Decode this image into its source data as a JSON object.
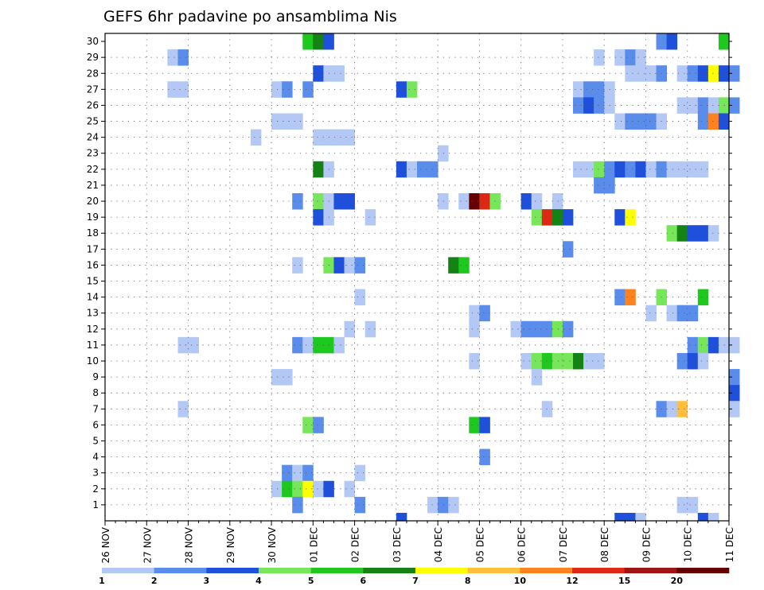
{
  "chart_data": {
    "type": "heatmap",
    "title": "GEFS 6hr padavine po ansamblima Nis",
    "x_tick_labels": [
      "26 NOV",
      "27 NOV",
      "28 NOV",
      "29 NOV",
      "30 NOV",
      "01 DEC",
      "02 DEC",
      "03 DEC",
      "04 DEC",
      "05 DEC",
      "06 DEC",
      "07 DEC",
      "08 DEC",
      "09 DEC",
      "10 DEC",
      "11 DEC"
    ],
    "y_tick_labels": [
      "1",
      "2",
      "3",
      "4",
      "5",
      "6",
      "7",
      "8",
      "9",
      "10",
      "11",
      "12",
      "13",
      "14",
      "15",
      "16",
      "17",
      "18",
      "19",
      "20",
      "21",
      "22",
      "23",
      "24",
      "25",
      "26",
      "27",
      "28",
      "29",
      "30"
    ],
    "ylim": [
      0,
      30
    ],
    "grid": true,
    "steps_per_day": 4,
    "legend": {
      "labels": [
        "1",
        "2",
        "3",
        "4",
        "5",
        "6",
        "7",
        "8",
        "10",
        "12",
        "15",
        "20"
      ],
      "colors": [
        "#b4c8f5",
        "#5a8ceb",
        "#1e50dc",
        "#78e65a",
        "#1ec81e",
        "#148214",
        "#ffff00",
        "#ffbe3c",
        "#ff821e",
        "#dc2814",
        "#a01414",
        "#640000"
      ]
    },
    "cells": [
      {
        "m": 30,
        "t": 19,
        "c": 5
      },
      {
        "m": 30,
        "t": 20,
        "c": 6
      },
      {
        "m": 30,
        "t": 21,
        "c": 3
      },
      {
        "m": 30,
        "t": 53,
        "c": 2
      },
      {
        "m": 30,
        "t": 54,
        "c": 3
      },
      {
        "m": 30,
        "t": 59,
        "c": 5
      },
      {
        "m": 29,
        "t": 6,
        "c": 1
      },
      {
        "m": 29,
        "t": 7,
        "c": 2
      },
      {
        "m": 29,
        "t": 47,
        "c": 1
      },
      {
        "m": 29,
        "t": 49,
        "c": 1
      },
      {
        "m": 29,
        "t": 50,
        "c": 2
      },
      {
        "m": 29,
        "t": 51,
        "c": 1
      },
      {
        "m": 28,
        "t": 20,
        "c": 3
      },
      {
        "m": 28,
        "t": 21,
        "c": 1
      },
      {
        "m": 28,
        "t": 22,
        "c": 1
      },
      {
        "m": 28,
        "t": 50,
        "c": 1
      },
      {
        "m": 28,
        "t": 51,
        "c": 1
      },
      {
        "m": 28,
        "t": 52,
        "c": 1
      },
      {
        "m": 28,
        "t": 53,
        "c": 2
      },
      {
        "m": 28,
        "t": 55,
        "c": 1
      },
      {
        "m": 28,
        "t": 56,
        "c": 2
      },
      {
        "m": 28,
        "t": 57,
        "c": 3
      },
      {
        "m": 28,
        "t": 58,
        "c": 7
      },
      {
        "m": 28,
        "t": 59,
        "c": 3
      },
      {
        "m": 28,
        "t": 60,
        "c": 2
      },
      {
        "m": 27,
        "t": 6,
        "c": 1
      },
      {
        "m": 27,
        "t": 7,
        "c": 1
      },
      {
        "m": 27,
        "t": 16,
        "c": 1
      },
      {
        "m": 27,
        "t": 17,
        "c": 2
      },
      {
        "m": 27,
        "t": 19,
        "c": 2
      },
      {
        "m": 27,
        "t": 28,
        "c": 3
      },
      {
        "m": 27,
        "t": 29,
        "c": 4
      },
      {
        "m": 27,
        "t": 45,
        "c": 1
      },
      {
        "m": 27,
        "t": 46,
        "c": 2
      },
      {
        "m": 27,
        "t": 47,
        "c": 2
      },
      {
        "m": 27,
        "t": 48,
        "c": 1
      },
      {
        "m": 26,
        "t": 45,
        "c": 2
      },
      {
        "m": 26,
        "t": 46,
        "c": 3
      },
      {
        "m": 26,
        "t": 47,
        "c": 2
      },
      {
        "m": 26,
        "t": 48,
        "c": 1
      },
      {
        "m": 26,
        "t": 55,
        "c": 1
      },
      {
        "m": 26,
        "t": 56,
        "c": 1
      },
      {
        "m": 26,
        "t": 57,
        "c": 2
      },
      {
        "m": 26,
        "t": 58,
        "c": 1
      },
      {
        "m": 26,
        "t": 59,
        "c": 4
      },
      {
        "m": 26,
        "t": 60,
        "c": 2
      },
      {
        "m": 25,
        "t": 16,
        "c": 1
      },
      {
        "m": 25,
        "t": 17,
        "c": 1
      },
      {
        "m": 25,
        "t": 18,
        "c": 1
      },
      {
        "m": 25,
        "t": 49,
        "c": 1
      },
      {
        "m": 25,
        "t": 50,
        "c": 2
      },
      {
        "m": 25,
        "t": 51,
        "c": 2
      },
      {
        "m": 25,
        "t": 52,
        "c": 2
      },
      {
        "m": 25,
        "t": 53,
        "c": 1
      },
      {
        "m": 25,
        "t": 57,
        "c": 2
      },
      {
        "m": 25,
        "t": 58,
        "c": 9
      },
      {
        "m": 25,
        "t": 59,
        "c": 3
      },
      {
        "m": 24,
        "t": 14,
        "c": 1
      },
      {
        "m": 24,
        "t": 20,
        "c": 1
      },
      {
        "m": 24,
        "t": 21,
        "c": 1
      },
      {
        "m": 24,
        "t": 22,
        "c": 1
      },
      {
        "m": 24,
        "t": 23,
        "c": 1
      },
      {
        "m": 23,
        "t": 32,
        "c": 1
      },
      {
        "m": 22,
        "t": 20,
        "c": 6
      },
      {
        "m": 22,
        "t": 21,
        "c": 1
      },
      {
        "m": 22,
        "t": 28,
        "c": 3
      },
      {
        "m": 22,
        "t": 29,
        "c": 1
      },
      {
        "m": 22,
        "t": 30,
        "c": 2
      },
      {
        "m": 22,
        "t": 31,
        "c": 2
      },
      {
        "m": 22,
        "t": 45,
        "c": 1
      },
      {
        "m": 22,
        "t": 46,
        "c": 1
      },
      {
        "m": 22,
        "t": 47,
        "c": 4
      },
      {
        "m": 22,
        "t": 48,
        "c": 2
      },
      {
        "m": 22,
        "t": 49,
        "c": 3
      },
      {
        "m": 22,
        "t": 50,
        "c": 2
      },
      {
        "m": 22,
        "t": 51,
        "c": 3
      },
      {
        "m": 22,
        "t": 52,
        "c": 1
      },
      {
        "m": 22,
        "t": 53,
        "c": 2
      },
      {
        "m": 22,
        "t": 54,
        "c": 1
      },
      {
        "m": 22,
        "t": 55,
        "c": 1
      },
      {
        "m": 22,
        "t": 56,
        "c": 1
      },
      {
        "m": 22,
        "t": 57,
        "c": 1
      },
      {
        "m": 21,
        "t": 47,
        "c": 2
      },
      {
        "m": 21,
        "t": 48,
        "c": 2
      },
      {
        "m": 20,
        "t": 18,
        "c": 2
      },
      {
        "m": 20,
        "t": 20,
        "c": 4
      },
      {
        "m": 20,
        "t": 21,
        "c": 1
      },
      {
        "m": 20,
        "t": 22,
        "c": 3
      },
      {
        "m": 20,
        "t": 23,
        "c": 3
      },
      {
        "m": 20,
        "t": 32,
        "c": 1
      },
      {
        "m": 20,
        "t": 34,
        "c": 1
      },
      {
        "m": 20,
        "t": 35,
        "c": 12
      },
      {
        "m": 20,
        "t": 36,
        "c": 10
      },
      {
        "m": 20,
        "t": 37,
        "c": 4
      },
      {
        "m": 20,
        "t": 40,
        "c": 3
      },
      {
        "m": 20,
        "t": 41,
        "c": 1
      },
      {
        "m": 20,
        "t": 43,
        "c": 1
      },
      {
        "m": 19,
        "t": 20,
        "c": 3
      },
      {
        "m": 19,
        "t": 21,
        "c": 1
      },
      {
        "m": 19,
        "t": 25,
        "c": 1
      },
      {
        "m": 19,
        "t": 41,
        "c": 4
      },
      {
        "m": 19,
        "t": 42,
        "c": 10
      },
      {
        "m": 19,
        "t": 43,
        "c": 6
      },
      {
        "m": 19,
        "t": 44,
        "c": 3
      },
      {
        "m": 19,
        "t": 49,
        "c": 3
      },
      {
        "m": 19,
        "t": 50,
        "c": 7
      },
      {
        "m": 18,
        "t": 54,
        "c": 4
      },
      {
        "m": 18,
        "t": 55,
        "c": 6
      },
      {
        "m": 18,
        "t": 56,
        "c": 3
      },
      {
        "m": 18,
        "t": 57,
        "c": 3
      },
      {
        "m": 18,
        "t": 58,
        "c": 1
      },
      {
        "m": 17,
        "t": 44,
        "c": 2
      },
      {
        "m": 16,
        "t": 18,
        "c": 1
      },
      {
        "m": 16,
        "t": 21,
        "c": 4
      },
      {
        "m": 16,
        "t": 22,
        "c": 3
      },
      {
        "m": 16,
        "t": 23,
        "c": 1
      },
      {
        "m": 16,
        "t": 24,
        "c": 2
      },
      {
        "m": 16,
        "t": 33,
        "c": 6
      },
      {
        "m": 16,
        "t": 34,
        "c": 5
      },
      {
        "m": 14,
        "t": 24,
        "c": 1
      },
      {
        "m": 14,
        "t": 49,
        "c": 2
      },
      {
        "m": 14,
        "t": 50,
        "c": 9
      },
      {
        "m": 14,
        "t": 53,
        "c": 4
      },
      {
        "m": 14,
        "t": 57,
        "c": 5
      },
      {
        "m": 13,
        "t": 35,
        "c": 1
      },
      {
        "m": 13,
        "t": 36,
        "c": 2
      },
      {
        "m": 13,
        "t": 52,
        "c": 1
      },
      {
        "m": 13,
        "t": 54,
        "c": 1
      },
      {
        "m": 13,
        "t": 55,
        "c": 2
      },
      {
        "m": 13,
        "t": 56,
        "c": 2
      },
      {
        "m": 12,
        "t": 23,
        "c": 1
      },
      {
        "m": 12,
        "t": 25,
        "c": 1
      },
      {
        "m": 12,
        "t": 35,
        "c": 1
      },
      {
        "m": 12,
        "t": 39,
        "c": 1
      },
      {
        "m": 12,
        "t": 40,
        "c": 2
      },
      {
        "m": 12,
        "t": 41,
        "c": 2
      },
      {
        "m": 12,
        "t": 42,
        "c": 2
      },
      {
        "m": 12,
        "t": 43,
        "c": 4
      },
      {
        "m": 12,
        "t": 44,
        "c": 2
      },
      {
        "m": 11,
        "t": 7,
        "c": 1
      },
      {
        "m": 11,
        "t": 8,
        "c": 1
      },
      {
        "m": 11,
        "t": 18,
        "c": 2
      },
      {
        "m": 11,
        "t": 19,
        "c": 1
      },
      {
        "m": 11,
        "t": 20,
        "c": 5
      },
      {
        "m": 11,
        "t": 21,
        "c": 5
      },
      {
        "m": 11,
        "t": 22,
        "c": 1
      },
      {
        "m": 11,
        "t": 56,
        "c": 2
      },
      {
        "m": 11,
        "t": 57,
        "c": 4
      },
      {
        "m": 11,
        "t": 58,
        "c": 3
      },
      {
        "m": 11,
        "t": 59,
        "c": 1
      },
      {
        "m": 11,
        "t": 60,
        "c": 1
      },
      {
        "m": 10,
        "t": 35,
        "c": 1
      },
      {
        "m": 10,
        "t": 40,
        "c": 1
      },
      {
        "m": 10,
        "t": 41,
        "c": 4
      },
      {
        "m": 10,
        "t": 42,
        "c": 5
      },
      {
        "m": 10,
        "t": 43,
        "c": 4
      },
      {
        "m": 10,
        "t": 44,
        "c": 4
      },
      {
        "m": 10,
        "t": 45,
        "c": 6
      },
      {
        "m": 10,
        "t": 46,
        "c": 1
      },
      {
        "m": 10,
        "t": 47,
        "c": 1
      },
      {
        "m": 10,
        "t": 55,
        "c": 2
      },
      {
        "m": 10,
        "t": 56,
        "c": 3
      },
      {
        "m": 10,
        "t": 57,
        "c": 1
      },
      {
        "m": 9,
        "t": 16,
        "c": 1
      },
      {
        "m": 9,
        "t": 17,
        "c": 1
      },
      {
        "m": 9,
        "t": 41,
        "c": 1
      },
      {
        "m": 9,
        "t": 60,
        "c": 2
      },
      {
        "m": 8,
        "t": 60,
        "c": 3
      },
      {
        "m": 7,
        "t": 7,
        "c": 1
      },
      {
        "m": 7,
        "t": 42,
        "c": 1
      },
      {
        "m": 7,
        "t": 53,
        "c": 2
      },
      {
        "m": 7,
        "t": 54,
        "c": 1
      },
      {
        "m": 7,
        "t": 55,
        "c": 8
      },
      {
        "m": 7,
        "t": 60,
        "c": 1
      },
      {
        "m": 6,
        "t": 19,
        "c": 4
      },
      {
        "m": 6,
        "t": 20,
        "c": 2
      },
      {
        "m": 6,
        "t": 35,
        "c": 5
      },
      {
        "m": 6,
        "t": 36,
        "c": 3
      },
      {
        "m": 4,
        "t": 36,
        "c": 2
      },
      {
        "m": 3,
        "t": 17,
        "c": 2
      },
      {
        "m": 3,
        "t": 18,
        "c": 1
      },
      {
        "m": 3,
        "t": 19,
        "c": 2
      },
      {
        "m": 3,
        "t": 24,
        "c": 1
      },
      {
        "m": 2,
        "t": 16,
        "c": 1
      },
      {
        "m": 2,
        "t": 17,
        "c": 5
      },
      {
        "m": 2,
        "t": 18,
        "c": 4
      },
      {
        "m": 2,
        "t": 19,
        "c": 7
      },
      {
        "m": 2,
        "t": 20,
        "c": 1
      },
      {
        "m": 2,
        "t": 21,
        "c": 3
      },
      {
        "m": 2,
        "t": 23,
        "c": 1
      },
      {
        "m": 1,
        "t": 18,
        "c": 2
      },
      {
        "m": 1,
        "t": 24,
        "c": 2
      },
      {
        "m": 1,
        "t": 31,
        "c": 1
      },
      {
        "m": 1,
        "t": 32,
        "c": 2
      },
      {
        "m": 1,
        "t": 33,
        "c": 1
      },
      {
        "m": 1,
        "t": 55,
        "c": 1
      },
      {
        "m": 1,
        "t": 56,
        "c": 1
      },
      {
        "m": 0,
        "t": 28,
        "c": 3
      },
      {
        "m": 0,
        "t": 49,
        "c": 3
      },
      {
        "m": 0,
        "t": 50,
        "c": 3
      },
      {
        "m": 0,
        "t": 51,
        "c": 1
      },
      {
        "m": 0,
        "t": 57,
        "c": 3
      },
      {
        "m": 0,
        "t": 58,
        "c": 1
      }
    ]
  }
}
